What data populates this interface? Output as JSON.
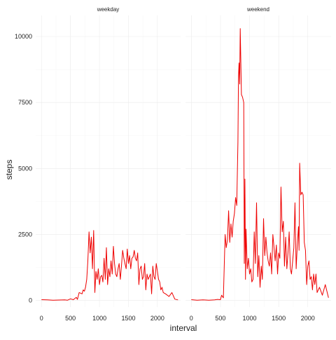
{
  "chart_data": {
    "type": "line",
    "xlabel": "interval",
    "ylabel": "steps",
    "xlim": [
      -100,
      2400
    ],
    "ylim": [
      -250,
      10800
    ],
    "x_ticks": [
      0,
      500,
      1000,
      1500,
      2000
    ],
    "x_tick_labels": [
      "0",
      "500",
      "1000",
      "1500",
      "2000"
    ],
    "y_ticks": [
      0,
      2500,
      5000,
      7500,
      10000
    ],
    "y_tick_labels": [
      "0",
      "2500",
      "5000",
      "7500",
      "10000"
    ],
    "grid": true,
    "line_color": "#ee0000",
    "panels": [
      {
        "title": "weekday",
        "x": [
          0,
          100,
          200,
          300,
          400,
          450,
          500,
          550,
          600,
          620,
          650,
          700,
          720,
          740,
          760,
          780,
          800,
          820,
          840,
          860,
          880,
          900,
          920,
          940,
          960,
          980,
          1000,
          1020,
          1040,
          1060,
          1080,
          1100,
          1120,
          1140,
          1160,
          1180,
          1200,
          1220,
          1240,
          1260,
          1280,
          1300,
          1320,
          1340,
          1360,
          1380,
          1400,
          1420,
          1440,
          1460,
          1480,
          1500,
          1520,
          1540,
          1560,
          1580,
          1600,
          1620,
          1640,
          1660,
          1680,
          1700,
          1720,
          1740,
          1760,
          1780,
          1800,
          1820,
          1840,
          1860,
          1880,
          1900,
          1920,
          1940,
          1960,
          1980,
          2000,
          2020,
          2040,
          2060,
          2080,
          2100,
          2140,
          2200,
          2250,
          2300,
          2355
        ],
        "y": [
          30,
          20,
          10,
          15,
          20,
          10,
          60,
          30,
          120,
          40,
          300,
          250,
          400,
          350,
          500,
          800,
          1500,
          2600,
          1800,
          2400,
          1200,
          2650,
          300,
          1100,
          800,
          1200,
          600,
          900,
          950,
          700,
          1600,
          800,
          2000,
          600,
          1200,
          900,
          1500,
          1000,
          2050,
          1400,
          1000,
          900,
          1200,
          1400,
          800,
          1300,
          1900,
          1600,
          1400,
          1200,
          1950,
          1400,
          1700,
          1200,
          1600,
          1650,
          1900,
          1600,
          1500,
          1800,
          600,
          1200,
          1300,
          800,
          900,
          1400,
          400,
          1000,
          800,
          900,
          1000,
          250,
          1300,
          900,
          800,
          1400,
          1100,
          800,
          700,
          400,
          500,
          300,
          250,
          150,
          300,
          50,
          20
        ]
      },
      {
        "title": "weekend",
        "x": [
          0,
          100,
          200,
          300,
          400,
          450,
          500,
          520,
          550,
          580,
          600,
          620,
          640,
          660,
          680,
          700,
          720,
          740,
          760,
          780,
          800,
          810,
          820,
          830,
          840,
          860,
          880,
          900,
          910,
          920,
          930,
          940,
          960,
          980,
          1000,
          1020,
          1040,
          1060,
          1080,
          1100,
          1120,
          1140,
          1160,
          1180,
          1200,
          1220,
          1240,
          1260,
          1280,
          1300,
          1320,
          1340,
          1360,
          1380,
          1400,
          1420,
          1440,
          1460,
          1480,
          1500,
          1520,
          1540,
          1560,
          1580,
          1600,
          1620,
          1640,
          1660,
          1680,
          1700,
          1720,
          1740,
          1760,
          1780,
          1800,
          1820,
          1840,
          1850,
          1860,
          1880,
          1900,
          1920,
          1940,
          1960,
          1980,
          2000,
          2020,
          2040,
          2060,
          2080,
          2100,
          2120,
          2140,
          2160,
          2200,
          2250,
          2300,
          2355
        ],
        "y": [
          30,
          10,
          20,
          10,
          20,
          40,
          30,
          200,
          100,
          2500,
          2000,
          2300,
          3400,
          2200,
          2900,
          2400,
          3000,
          3300,
          3900,
          3600,
          6000,
          8500,
          9000,
          8200,
          10300,
          7800,
          7700,
          7500,
          1400,
          4600,
          800,
          2700,
          1200,
          1600,
          1000,
          1200,
          700,
          800,
          2600,
          1400,
          3700,
          900,
          1700,
          500,
          1300,
          800,
          3100,
          1700,
          2400,
          1800,
          1500,
          1300,
          1800,
          1000,
          2500,
          2000,
          1500,
          2100,
          1000,
          1800,
          1600,
          4300,
          2600,
          3000,
          1300,
          2400,
          1200,
          1800,
          2600,
          1200,
          1000,
          1500,
          2000,
          3700,
          1200,
          2100,
          2800,
          1900,
          5200,
          4000,
          4100,
          4000,
          2200,
          1900,
          600,
          1300,
          1500,
          800,
          900,
          400,
          1000,
          600,
          1000,
          300,
          500,
          200,
          600,
          100
        ]
      }
    ]
  }
}
